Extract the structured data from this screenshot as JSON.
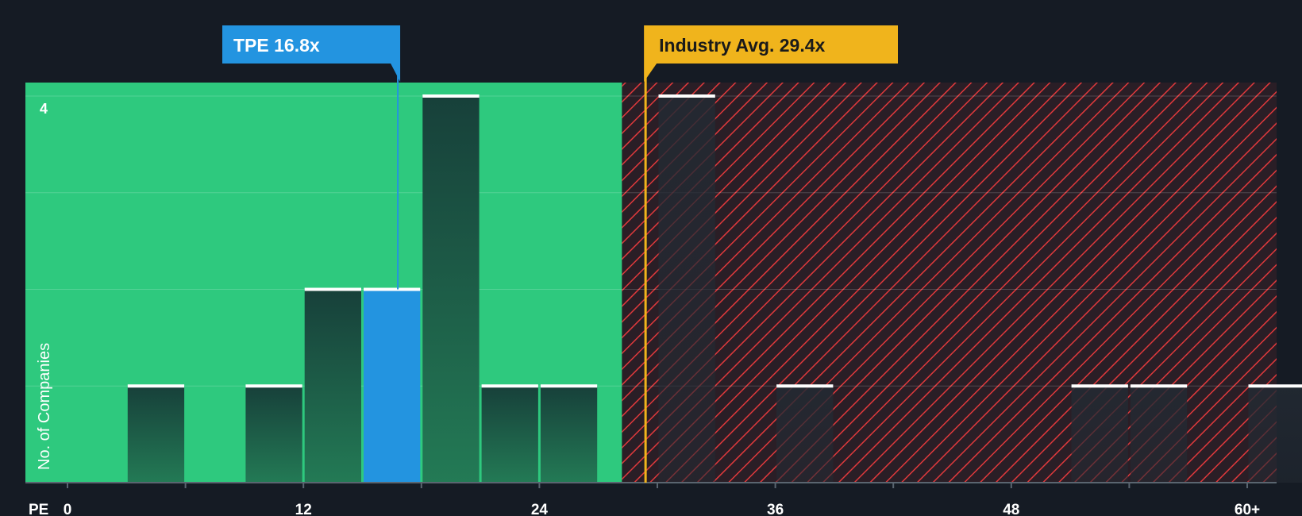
{
  "chart_data": {
    "type": "bar",
    "title": "",
    "xlabel": "PE",
    "ylabel": "No. of Companies",
    "x_tick_labels": [
      "0",
      "12",
      "24",
      "36",
      "48",
      "60+"
    ],
    "x_tick_values": [
      0,
      12,
      24,
      36,
      48,
      60
    ],
    "y_tick_labels": [
      "4"
    ],
    "ylim": [
      0,
      4
    ],
    "xlim": [
      -2.1,
      61.5
    ],
    "grid": true,
    "bins": [
      {
        "start": 3,
        "end": 6,
        "count": 1
      },
      {
        "start": 9,
        "end": 12,
        "count": 1
      },
      {
        "start": 12,
        "end": 15,
        "count": 2
      },
      {
        "start": 15,
        "end": 18,
        "count": 2,
        "highlight": true
      },
      {
        "start": 18,
        "end": 21,
        "count": 4
      },
      {
        "start": 21,
        "end": 24,
        "count": 1
      },
      {
        "start": 24,
        "end": 27,
        "count": 1
      },
      {
        "start": 30,
        "end": 33,
        "count": 4
      },
      {
        "start": 36,
        "end": 39,
        "count": 1
      },
      {
        "start": 51,
        "end": 54,
        "count": 1
      },
      {
        "start": 54,
        "end": 57,
        "count": 1
      },
      {
        "start": 60,
        "end": 63,
        "count": 1
      }
    ],
    "company": {
      "label": "TPE 16.8x",
      "value": 16.8
    },
    "industry_avg": {
      "label": "Industry Avg. 29.4x",
      "value": 29.4
    },
    "green_zone_end": 28.2
  },
  "colors": {
    "background": "#151b24",
    "green_zone": "#2ec97e",
    "red_zone": "#2a1e26",
    "hatch": "#e0393c",
    "bar": "#1f5f47",
    "bar_top": "#17403a",
    "highlight_bar": "#2394e0",
    "company_marker": "#2394e0",
    "industry_marker": "#f0b41c",
    "axis_text": "#ffffff"
  }
}
